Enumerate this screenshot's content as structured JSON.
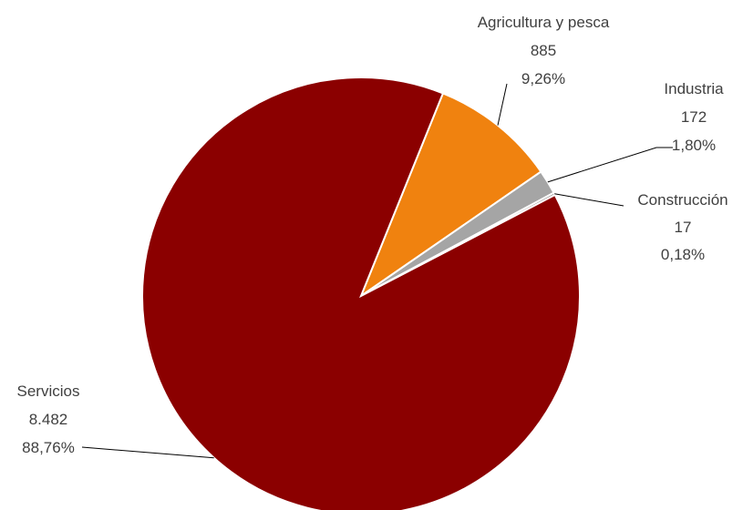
{
  "chart_data": {
    "type": "pie",
    "categories": [
      "Servicios",
      "Agricultura y pesca",
      "Industria",
      "Construcción"
    ],
    "values": [
      8482,
      885,
      172,
      17
    ],
    "value_labels": [
      "8.482",
      "885",
      "172",
      "17"
    ],
    "percent_labels": [
      "88,76%",
      "9,26%",
      "1,80%",
      "0,18%"
    ],
    "colors": [
      "#8B0000",
      "#F0820F",
      "#A5A5A5",
      "#7F7F7F"
    ],
    "legend": "none",
    "data_labels": "outside with leader lines"
  }
}
